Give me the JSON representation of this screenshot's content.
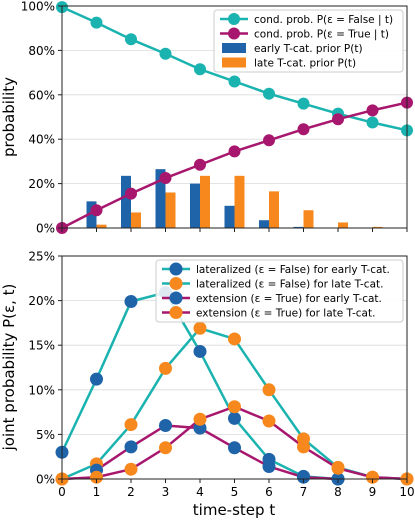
{
  "chart_data": [
    {
      "type": "line",
      "ylabel": "probability",
      "x_range": [
        0,
        10
      ],
      "ylim": [
        0,
        1
      ],
      "yticks": [
        0,
        0.2,
        0.4,
        0.6,
        0.8,
        1.0
      ],
      "yticklabels": [
        "0%",
        "20%",
        "40%",
        "60%",
        "80%",
        "100%"
      ],
      "grid": true,
      "legend_position": "top-right",
      "series": [
        {
          "name": "cond. prob. P(ε = False | t)",
          "kind": "line",
          "color": "#1ab3b0",
          "x": [
            0,
            1,
            2,
            3,
            4,
            5,
            6,
            7,
            8,
            9,
            10
          ],
          "values": [
            0.995,
            0.925,
            0.85,
            0.785,
            0.715,
            0.66,
            0.605,
            0.56,
            0.515,
            0.475,
            0.44
          ]
        },
        {
          "name": "cond. prob. P(ε = True | t)",
          "kind": "line",
          "color": "#a8176e",
          "x": [
            0,
            1,
            2,
            3,
            4,
            5,
            6,
            7,
            8,
            9,
            10
          ],
          "values": [
            0.0,
            0.08,
            0.155,
            0.225,
            0.285,
            0.345,
            0.395,
            0.445,
            0.49,
            0.53,
            0.565
          ]
        },
        {
          "name": "early T-cat. prior P(t)",
          "kind": "bar",
          "color": "#1f63a8",
          "x": [
            0,
            1,
            2,
            3,
            4,
            5,
            6,
            7,
            8,
            9,
            10
          ],
          "values": [
            0.0,
            0.12,
            0.235,
            0.265,
            0.2,
            0.1,
            0.035,
            0.005,
            0.0,
            0.0,
            0.0
          ]
        },
        {
          "name": "late T-cat. prior P(t)",
          "kind": "bar",
          "color": "#f7881e",
          "x": [
            0,
            1,
            2,
            3,
            4,
            5,
            6,
            7,
            8,
            9,
            10
          ],
          "values": [
            0.0,
            0.015,
            0.07,
            0.16,
            0.235,
            0.235,
            0.165,
            0.08,
            0.025,
            0.005,
            0.0
          ]
        }
      ]
    },
    {
      "type": "line",
      "xlabel": "time-step t",
      "ylabel": "joint probability P(ε, t)",
      "x_range": [
        0,
        10
      ],
      "xticks": [
        "0",
        "1",
        "2",
        "3",
        "4",
        "5",
        "6",
        "7",
        "8",
        "9",
        "10"
      ],
      "ylim": [
        0,
        0.25
      ],
      "yticks": [
        0,
        0.05,
        0.1,
        0.15,
        0.2,
        0.25
      ],
      "yticklabels": [
        "0%",
        "5%",
        "10%",
        "15%",
        "20%",
        "25%"
      ],
      "grid": true,
      "legend_position": "top-right",
      "series": [
        {
          "name": "lateralized (ε = False) for early T-cat.",
          "kind": "line",
          "color": "#1ab3b0",
          "marker": "#1f63a8",
          "x": [
            0,
            1,
            2,
            3,
            4,
            5,
            6,
            7,
            8
          ],
          "values": [
            0.03,
            0.112,
            0.199,
            0.209,
            0.143,
            0.068,
            0.022,
            0.003,
            0.0
          ]
        },
        {
          "name": "lateralized (ε = False) for late T-cat.",
          "kind": "line",
          "color": "#1ab3b0",
          "marker": "#f7881e",
          "x": [
            0,
            1,
            2,
            3,
            4,
            5,
            6,
            7,
            8,
            9,
            10
          ],
          "values": [
            0.0,
            0.017,
            0.061,
            0.124,
            0.169,
            0.157,
            0.1,
            0.045,
            0.013,
            0.002,
            0.0
          ]
        },
        {
          "name": "extension (ε = True) for early T-cat.",
          "kind": "line",
          "color": "#a8176e",
          "marker": "#1f63a8",
          "x": [
            1,
            2,
            3,
            4,
            5,
            6,
            7,
            8
          ],
          "values": [
            0.01,
            0.036,
            0.06,
            0.057,
            0.035,
            0.014,
            0.002,
            0.0
          ]
        },
        {
          "name": "extension (ε = True) for late T-cat.",
          "kind": "line",
          "color": "#a8176e",
          "marker": "#f7881e",
          "x": [
            0,
            1,
            2,
            3,
            4,
            5,
            6,
            7,
            8,
            9,
            10
          ],
          "values": [
            0.0,
            0.002,
            0.011,
            0.035,
            0.067,
            0.081,
            0.065,
            0.036,
            0.012,
            0.002,
            0.0
          ]
        }
      ]
    }
  ]
}
